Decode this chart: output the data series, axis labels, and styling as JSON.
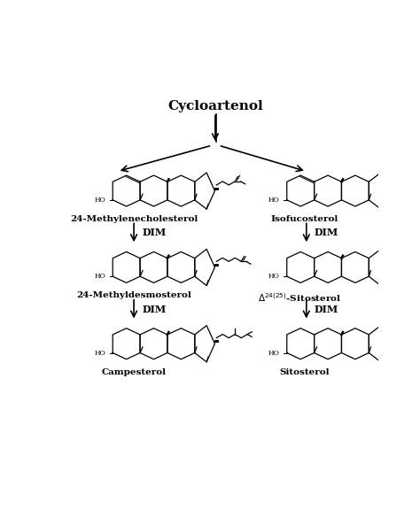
{
  "title": "Cycloartenol",
  "background": "#ffffff",
  "compounds": {
    "left_col": [
      "24-Methylenecholesterol",
      "24-Methyldesmosterol",
      "Campesterol"
    ],
    "right_col": [
      "Isofucosterol",
      "Δ24(25)-Sitosterol",
      "Sitosterol"
    ]
  },
  "arrow_label": "DIM",
  "figsize": [
    4.74,
    5.76
  ],
  "dpi": 100,
  "title_fontsize": 11,
  "label_fontsize": 7.5,
  "dim_fontsize": 8
}
